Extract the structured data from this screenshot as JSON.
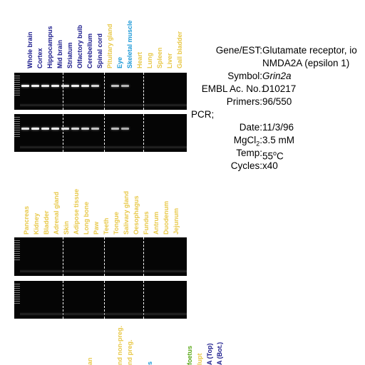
{
  "top_lanes": [
    {
      "label": "Whole brain",
      "color": "#1a1a8c"
    },
    {
      "label": "Cortex",
      "color": "#1a1a8c"
    },
    {
      "label": "Hippocampus",
      "color": "#1a1a8c"
    },
    {
      "label": "Mid brain",
      "color": "#1a1a8c"
    },
    {
      "label": "Striatum",
      "color": "#1a1a8c"
    },
    {
      "label": "Olfactory bulb",
      "color": "#1a1a8c"
    },
    {
      "label": "Cerebellum",
      "color": "#1a1a8c"
    },
    {
      "label": "Spinal cord",
      "color": "#1a1a8c"
    },
    {
      "label": "Pituitary gland",
      "color": "#e8c848"
    },
    {
      "label": "Eye",
      "color": "#1e9ad8"
    },
    {
      "label": "Skeletal muscle",
      "color": "#1e9ad8"
    },
    {
      "label": "Heart",
      "color": "#e8c848"
    },
    {
      "label": "Lung",
      "color": "#e8c848"
    },
    {
      "label": "Spleen",
      "color": "#e8c848"
    },
    {
      "label": "Liver",
      "color": "#e8c848"
    },
    {
      "label": "Gall bladder",
      "color": "#e8c848"
    }
  ],
  "middle_lanes": [
    {
      "label": "Pancreas",
      "color": "#e8c848"
    },
    {
      "label": "Kidney",
      "color": "#e8c848"
    },
    {
      "label": "Bladder",
      "color": "#e8c848"
    },
    {
      "label": "Adrenal gland",
      "color": "#e8c848"
    },
    {
      "label": "Skin",
      "color": "#e8c848"
    },
    {
      "label": "Adipose tissue",
      "color": "#e8c848"
    },
    {
      "label": "Long bone",
      "color": "#e8c848"
    },
    {
      "label": "Paw",
      "color": "#e8c848"
    },
    {
      "label": "Teeth",
      "color": "#e8c848"
    },
    {
      "label": "Tongue",
      "color": "#e8c848"
    },
    {
      "label": "Salivary gland",
      "color": "#e8c848"
    },
    {
      "label": "Oesophagus",
      "color": "#e8c848"
    },
    {
      "label": "Fundus",
      "color": "#e8c848"
    },
    {
      "label": "Antrum",
      "color": "#e8c848"
    },
    {
      "label": "Duodenum",
      "color": "#e8c848"
    },
    {
      "label": "Jejunum",
      "color": "#e8c848"
    }
  ],
  "bottom_lanes": [
    {
      "label": "",
      "color": "#e8c848"
    },
    {
      "label": "",
      "color": "#e8c848"
    },
    {
      "label": "",
      "color": "#e8c848"
    },
    {
      "label": "an",
      "color": "#e8c848"
    },
    {
      "label": "",
      "color": "#e8c848"
    },
    {
      "label": "",
      "color": "#e8c848"
    },
    {
      "label": "nd non-preg.",
      "color": "#e8c848"
    },
    {
      "label": "nd preg.",
      "color": "#e8c848"
    },
    {
      "label": "",
      "color": "#e8c848"
    },
    {
      "label": "s",
      "color": "#1e9ad8"
    },
    {
      "label": "",
      "color": "#e8c848"
    },
    {
      "label": "",
      "color": "#e8c848"
    },
    {
      "label": "",
      "color": "#e8c848"
    },
    {
      "label": "foetus",
      "color": "#5aa818"
    },
    {
      "label": "lupt",
      "color": "#e8c848"
    },
    {
      "label": "A (Top)",
      "color": "#1a1a8c"
    },
    {
      "label": "A (Bot.)",
      "color": "#1a1a8c"
    }
  ],
  "info": {
    "gene_key": "Gene/EST:",
    "gene_value": "Glutamate receptor, io",
    "gene_value2": "NMDA2A (epsilon 1)",
    "symbol_key": "Symbol:",
    "symbol_value": "Grin2a",
    "embl_key": "EMBL Ac. No.:",
    "embl_value": "D10217",
    "primers_key": "Primers:",
    "primers_value": "96/550",
    "pcr_label": "PCR;",
    "date_key": "Date:",
    "date_value": "11/3/96",
    "mgcl_key": "MgCl",
    "mgcl_sub": "2",
    "mgcl_colon": ":",
    "mgcl_value": "3.5 mM",
    "temp_key": "Temp:",
    "temp_value": "55",
    "temp_sup": "o",
    "temp_unit": "C",
    "cycles_key": "Cycles:",
    "cycles_value": "x40"
  },
  "gels": {
    "gel1_band_intensity": [
      0.95,
      0.9,
      0.85,
      0.9,
      0.8,
      0.9,
      0.85,
      0.7,
      0,
      0.55,
      0.45,
      0,
      0,
      0,
      0,
      0
    ],
    "gel2_band_intensity": [
      0.8,
      0.95,
      0.9,
      0.85,
      0.8,
      0.7,
      0.7,
      0.55,
      0,
      0.5,
      0.4,
      0,
      0,
      0,
      0,
      0
    ],
    "gel3_band_intensity": [
      0,
      0,
      0,
      0,
      0,
      0,
      0,
      0,
      0,
      0,
      0,
      0,
      0,
      0,
      0,
      0
    ],
    "gel4_band_intensity": [
      0,
      0,
      0,
      0,
      0,
      0,
      0,
      0,
      0,
      0,
      0,
      0,
      0,
      0,
      0,
      0
    ]
  }
}
